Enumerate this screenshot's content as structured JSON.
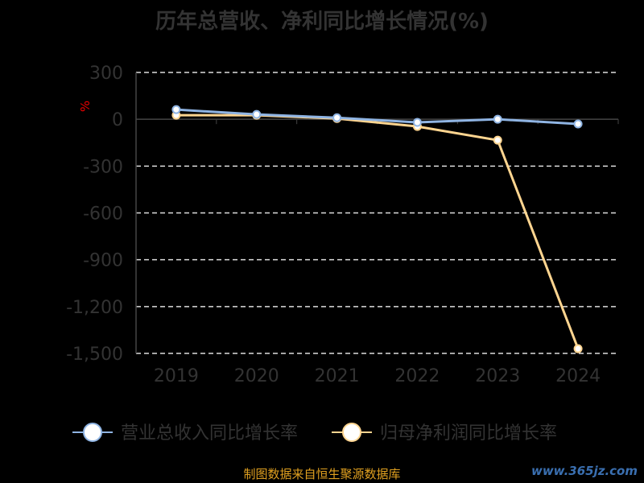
{
  "chart_data": {
    "type": "line",
    "title": "历年总营收、净利同比增长情况(%)",
    "ylabel": "%",
    "categories": [
      "2019",
      "2020",
      "2021",
      "2022",
      "2023",
      "2024"
    ],
    "ylim": [
      -1500,
      300
    ],
    "yticks": [
      300,
      0,
      -300,
      -600,
      -900,
      -1200,
      -1500
    ],
    "ytick_labels": [
      "300",
      "0",
      "-300",
      "-600",
      "-900",
      "-1,200",
      "-1,500"
    ],
    "grid": true,
    "legend_position": "bottom",
    "series": [
      {
        "name": "营业总收入同比增长率",
        "color": "#8fb4e3",
        "values": [
          62,
          31,
          10,
          -20,
          0,
          -30
        ]
      },
      {
        "name": "归母净利润同比增长率",
        "color": "#ffd590",
        "values": [
          26,
          26,
          5,
          -46,
          -134,
          -1470
        ]
      }
    ]
  },
  "source": "制图数据来自恒生聚源数据库",
  "watermark": "www.365jz.com"
}
